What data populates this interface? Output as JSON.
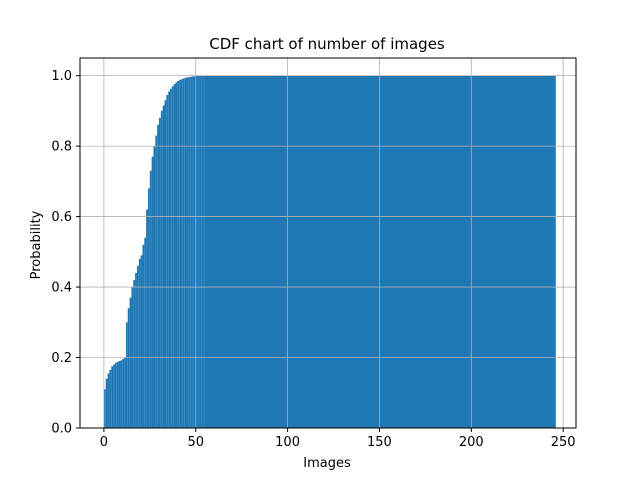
{
  "chart_data": {
    "type": "bar",
    "title": "CDF chart of number of images",
    "xlabel": "Images",
    "ylabel": "Probability",
    "xlim": [
      -13,
      257
    ],
    "ylim": [
      0,
      1.05
    ],
    "xticks": [
      0,
      50,
      100,
      150,
      200,
      250
    ],
    "yticks": [
      0.0,
      0.2,
      0.4,
      0.6,
      0.8,
      1.0
    ],
    "xtick_labels": [
      "0",
      "50",
      "100",
      "150",
      "200",
      "250"
    ],
    "ytick_labels": [
      "0.0",
      "0.2",
      "0.4",
      "0.6",
      "0.8",
      "1.0"
    ],
    "grid": true,
    "color": "#1f77b4",
    "bin_width": 1,
    "x": [
      0,
      1,
      2,
      3,
      4,
      5,
      6,
      7,
      8,
      9,
      10,
      11,
      12,
      13,
      14,
      15,
      16,
      17,
      18,
      19,
      20,
      21,
      22,
      23,
      24,
      25,
      26,
      27,
      28,
      29,
      30,
      31,
      32,
      33,
      34,
      35,
      36,
      37,
      38,
      39,
      40,
      41,
      42,
      43,
      44,
      45,
      46,
      47,
      48,
      49,
      50,
      51,
      52,
      53,
      54,
      55,
      245
    ],
    "values": [
      0.11,
      0.14,
      0.155,
      0.165,
      0.175,
      0.18,
      0.185,
      0.188,
      0.19,
      0.192,
      0.196,
      0.2,
      0.3,
      0.34,
      0.37,
      0.4,
      0.42,
      0.44,
      0.46,
      0.48,
      0.49,
      0.52,
      0.54,
      0.62,
      0.68,
      0.73,
      0.77,
      0.8,
      0.83,
      0.86,
      0.88,
      0.9,
      0.915,
      0.93,
      0.945,
      0.955,
      0.963,
      0.97,
      0.976,
      0.981,
      0.985,
      0.988,
      0.99,
      0.992,
      0.994,
      0.995,
      0.996,
      0.997,
      0.998,
      0.998,
      0.999,
      0.999,
      1.0,
      1.0,
      1.0,
      1.0,
      1.0
    ]
  }
}
